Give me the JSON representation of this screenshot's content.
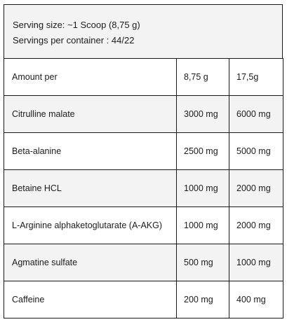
{
  "header": {
    "serving_size": "Serving size: ~1 Scoop  (8,75 g)",
    "servings_per_container": "Servings per container :  44/22"
  },
  "table": {
    "rows": [
      {
        "name": "Amount per",
        "col1": "8,75 g",
        "col2": "17,5g"
      },
      {
        "name": "Citrulline malate",
        "col1": "3000 mg",
        "col2": "6000 mg"
      },
      {
        "name": "Beta-alanine",
        "col1": "2500 mg",
        "col2": "5000 mg"
      },
      {
        "name": "Betaine HCL",
        "col1": "1000 mg",
        "col2": "2000 mg"
      },
      {
        "name": "L-Arginine alphaketoglutarate (A-AKG)",
        "col1": "1000 mg",
        "col2": "2000 mg"
      },
      {
        "name": "Agmatine sulfate",
        "col1": "500 mg",
        "col2": "1000 mg"
      },
      {
        "name": "Caffeine",
        "col1": "200 mg",
        "col2": "400 mg"
      }
    ]
  },
  "colors": {
    "shaded_background": "#f3f3f3",
    "border": "#1a1a1a",
    "text": "#1c1c1c"
  }
}
